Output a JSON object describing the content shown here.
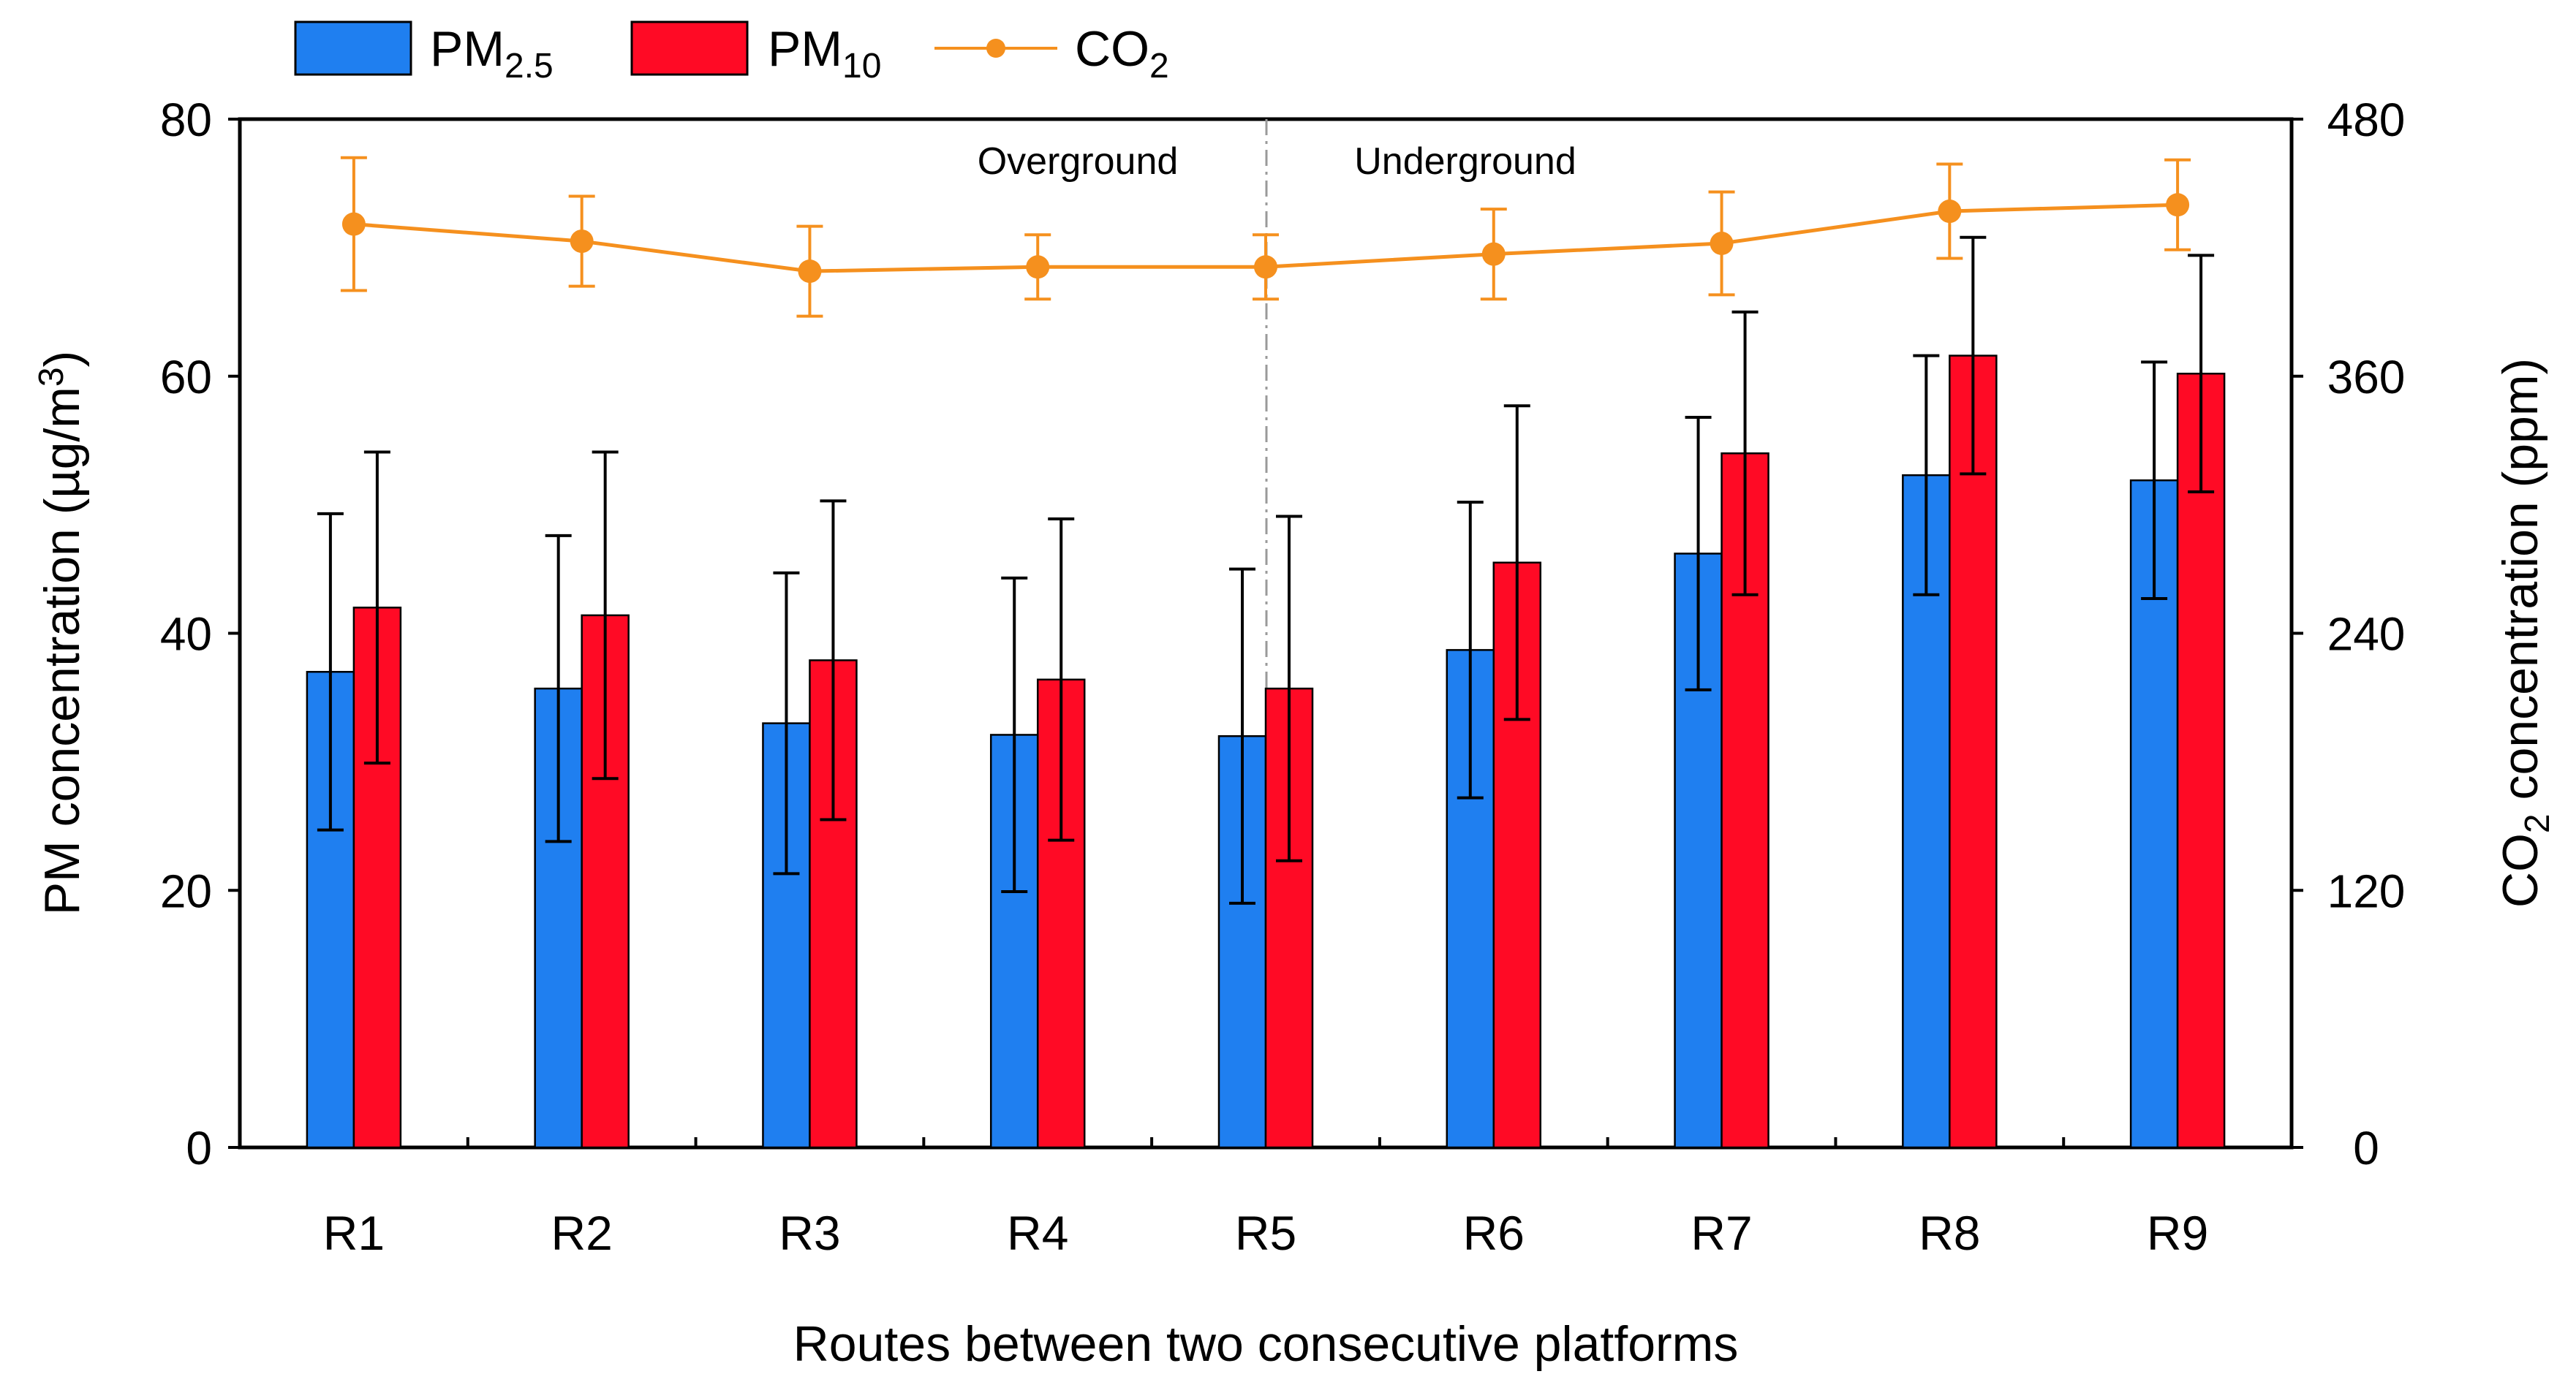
{
  "chart_data": {
    "type": "bar",
    "xlabel": "Routes between two consecutive platforms",
    "ylabel_left": {
      "main": "PM concentration (µg/m",
      "sup": "3",
      "close": ")"
    },
    "ylabel_right": {
      "prefix": "CO",
      "sub": "2",
      "suffix": " concentration (ppm)"
    },
    "ylim_left": [
      0,
      80
    ],
    "yticks_left": [
      0,
      20,
      40,
      60,
      80
    ],
    "ylim_right": [
      0,
      480
    ],
    "yticks_right": [
      0,
      120,
      240,
      360,
      480
    ],
    "categories": [
      "R1",
      "R2",
      "R3",
      "R4",
      "R5",
      "R6",
      "R7",
      "R8",
      "R9"
    ],
    "regions": {
      "left_label": "Overground",
      "right_label": "Underground",
      "divider_after": "R5"
    },
    "series": [
      {
        "name": "PM2.5",
        "label_main": "PM",
        "label_sub": "2.5",
        "type": "bar",
        "axis": "left",
        "color": "#1f7ff0",
        "values": [
          37.0,
          35.7,
          33.0,
          32.1,
          32.0,
          38.7,
          46.2,
          52.3,
          51.9
        ],
        "err": [
          12.3,
          11.9,
          11.7,
          12.2,
          13.0,
          11.5,
          10.6,
          9.3,
          9.2
        ]
      },
      {
        "name": "PM10",
        "label_main": "PM",
        "label_sub": "10",
        "type": "bar",
        "axis": "left",
        "color": "#ff0a25",
        "values": [
          42.0,
          41.4,
          37.9,
          36.4,
          35.7,
          45.5,
          54.0,
          61.6,
          60.2
        ],
        "err": [
          12.1,
          12.7,
          12.4,
          12.5,
          13.4,
          12.2,
          11.0,
          9.2,
          9.2
        ]
      },
      {
        "name": "CO2",
        "label_main": "CO",
        "label_sub": "2",
        "type": "line",
        "axis": "right",
        "color": "#f5901e",
        "values": [
          431,
          423,
          409,
          411,
          411,
          417,
          422,
          437,
          440
        ],
        "err": [
          31,
          21,
          21,
          15,
          15,
          21,
          24,
          22,
          21
        ]
      }
    ]
  }
}
